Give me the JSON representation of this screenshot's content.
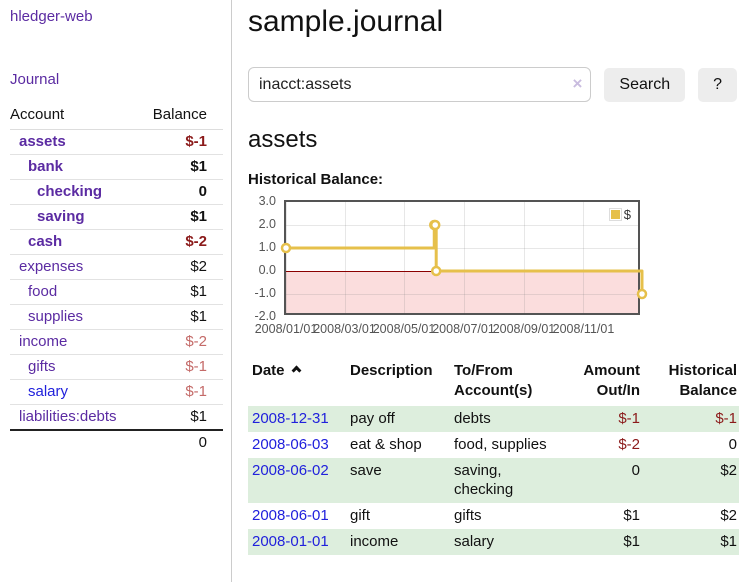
{
  "colors": {
    "link_purple": "#5b2ba2",
    "link_blue": "#2121dc",
    "negative_strong": "#8b1a1a",
    "negative_soft": "#c46a68",
    "row_stripe_green": "#ddeedd",
    "series_yellow": "#e6c04b",
    "zero_line_red": "#8b0000",
    "negative_region_pink": "#fbdddd"
  },
  "sidebar": {
    "brand": "hledger-web",
    "journal_link": "Journal",
    "accounts": {
      "col_account": "Account",
      "col_balance": "Balance",
      "rows": [
        {
          "name": "assets",
          "indent": 1,
          "bold": true,
          "balance": "$-1",
          "balance_style": "neg-strong"
        },
        {
          "name": "bank",
          "indent": 2,
          "bold": true,
          "balance": "$1",
          "balance_style": "pos"
        },
        {
          "name": "checking",
          "indent": 3,
          "bold": true,
          "balance": "0",
          "balance_style": "pos"
        },
        {
          "name": "saving",
          "indent": 3,
          "bold": true,
          "balance": "$1",
          "balance_style": "pos"
        },
        {
          "name": "cash",
          "indent": 2,
          "bold": true,
          "balance": "$-2",
          "balance_style": "neg-strong"
        },
        {
          "name": "expenses",
          "indent": 1,
          "bold": false,
          "balance": "$2",
          "balance_style": "pos"
        },
        {
          "name": "food",
          "indent": 2,
          "bold": false,
          "balance": "$1",
          "balance_style": "pos"
        },
        {
          "name": "supplies",
          "indent": 2,
          "bold": false,
          "balance": "$1",
          "balance_style": "pos"
        },
        {
          "name": "income",
          "indent": 1,
          "bold": false,
          "balance": "$-2",
          "balance_style": "neg-soft"
        },
        {
          "name": "gifts",
          "indent": 2,
          "bold": false,
          "balance": "$-1",
          "balance_style": "neg-soft"
        },
        {
          "name": "salary",
          "indent": 2,
          "bold": false,
          "balance": "$-1",
          "balance_style": "neg-soft",
          "link_style": "blue"
        },
        {
          "name": "liabilities:debts",
          "indent": 1,
          "bold": false,
          "balance": "$1",
          "balance_style": "pos"
        }
      ],
      "total": "0"
    }
  },
  "main": {
    "title": "sample.journal",
    "search": {
      "value": "inacct:assets",
      "clear": "×",
      "button": "Search",
      "help": "?"
    },
    "account_heading": "assets",
    "section_label": "Historical Balance:"
  },
  "chart_data": {
    "type": "line",
    "step": true,
    "title": "Historical Balance:",
    "legend": [
      {
        "label": "$",
        "color": "#e6c04b"
      }
    ],
    "legend_position": "top-right",
    "grid": true,
    "x_range": [
      "2008-01-01",
      "2008-12-31"
    ],
    "ylim": [
      -2.0,
      3.0
    ],
    "yticks": [
      {
        "label": "3.0",
        "value": 3.0
      },
      {
        "label": "2.0",
        "value": 2.0
      },
      {
        "label": "1.0",
        "value": 1.0
      },
      {
        "label": "0.0",
        "value": 0.0
      },
      {
        "label": "-1.0",
        "value": -1.0
      },
      {
        "label": "-2.0",
        "value": -2.0
      }
    ],
    "xticks": [
      {
        "label": "2008/01/01",
        "date": "2008-01-01"
      },
      {
        "label": "2008/03/01",
        "date": "2008-03-01"
      },
      {
        "label": "2008/05/01",
        "date": "2008-05-01"
      },
      {
        "label": "2008/07/01",
        "date": "2008-07-01"
      },
      {
        "label": "2008/09/01",
        "date": "2008-09-01"
      },
      {
        "label": "2008/11/01",
        "date": "2008-11-01"
      }
    ],
    "series": [
      {
        "name": "$",
        "points": [
          {
            "date": "2008-01-01",
            "value": 1.0
          },
          {
            "date": "2008-06-01",
            "value": 2.0
          },
          {
            "date": "2008-06-02",
            "value": 2.0
          },
          {
            "date": "2008-06-03",
            "value": 0.0
          },
          {
            "date": "2008-12-31",
            "value": -1.0
          }
        ]
      }
    ],
    "negative_region_below": 0.0
  },
  "register": {
    "columns": [
      {
        "label": "Date",
        "sorted": "ascending"
      },
      {
        "label": "Description"
      },
      {
        "label": "To/From Account(s)"
      },
      {
        "label": "Amount Out/In"
      },
      {
        "label": "Historical Balance"
      }
    ],
    "rows": [
      {
        "date": "2008-12-31",
        "description": "pay off",
        "accounts": "debts",
        "amount": "$-1",
        "amount_neg": true,
        "balance": "$-1",
        "balance_neg": true
      },
      {
        "date": "2008-06-03",
        "description": "eat & shop",
        "accounts": "food, supplies",
        "amount": "$-2",
        "amount_neg": true,
        "balance": "0",
        "balance_neg": false
      },
      {
        "date": "2008-06-02",
        "description": "save",
        "accounts": "saving, checking",
        "amount": "0",
        "amount_neg": false,
        "balance": "$2",
        "balance_neg": false
      },
      {
        "date": "2008-06-01",
        "description": "gift",
        "accounts": "gifts",
        "amount": "$1",
        "amount_neg": false,
        "balance": "$2",
        "balance_neg": false
      },
      {
        "date": "2008-01-01",
        "description": "income",
        "accounts": "salary",
        "amount": "$1",
        "amount_neg": false,
        "balance": "$1",
        "balance_neg": false
      }
    ]
  }
}
